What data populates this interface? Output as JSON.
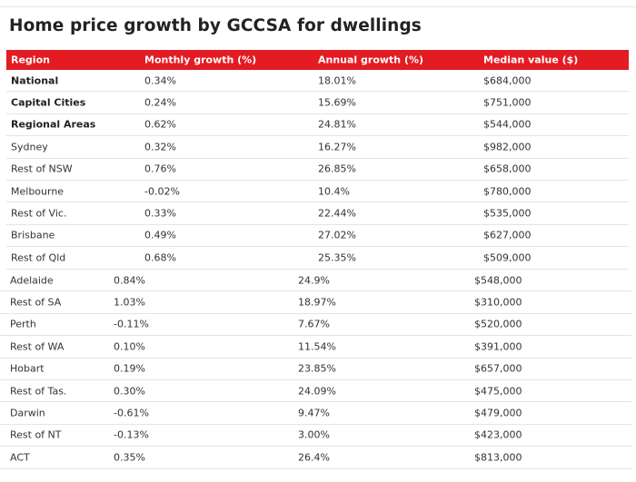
{
  "title": "Home price growth by GCCSA for dwellings",
  "header": [
    "Region",
    "Monthly growth (%)",
    "Annual growth (%)",
    "Median value ($)"
  ],
  "rows_top": [
    {
      "region": "National",
      "monthly": "0.34%",
      "annual": "18.01%",
      "median": "$684,000",
      "bold": true
    },
    {
      "region": "Capital Cities",
      "monthly": "0.24%",
      "annual": "15.69%",
      "median": "$751,000",
      "bold": true
    },
    {
      "region": "Regional Areas",
      "monthly": "0.62%",
      "annual": "24.81%",
      "median": "$544,000",
      "bold": true
    },
    {
      "region": "Sydney",
      "monthly": "0.32%",
      "annual": "16.27%",
      "median": "$982,000"
    },
    {
      "region": "Rest of NSW",
      "monthly": "0.76%",
      "annual": "26.85%",
      "median": "$658,000"
    },
    {
      "region": "Melbourne",
      "monthly": "-0.02%",
      "annual": "10.4%",
      "median": "$780,000"
    },
    {
      "region": "Rest of Vic.",
      "monthly": "0.33%",
      "annual": "22.44%",
      "median": "$535,000"
    },
    {
      "region": "Brisbane",
      "monthly": "0.49%",
      "annual": "27.02%",
      "median": "$627,000"
    },
    {
      "region": "Rest of Qld",
      "monthly": "0.68%",
      "annual": "25.35%",
      "median": "$509,000"
    }
  ],
  "rows_bottom": [
    {
      "region": "Adelaide",
      "monthly": "0.84%",
      "annual": "24.9%",
      "median": "$548,000"
    },
    {
      "region": "Rest of SA",
      "monthly": "1.03%",
      "annual": "18.97%",
      "median": "$310,000"
    },
    {
      "region": "Perth",
      "monthly": "-0.11%",
      "annual": "7.67%",
      "median": "$520,000"
    },
    {
      "region": "Rest of WA",
      "monthly": "0.10%",
      "annual": "11.54%",
      "median": "$391,000"
    },
    {
      "region": "Hobart",
      "monthly": "0.19%",
      "annual": "23.85%",
      "median": "$657,000"
    },
    {
      "region": "Rest of Tas.",
      "monthly": "0.30%",
      "annual": "24.09%",
      "median": "$475,000"
    },
    {
      "region": "Darwin",
      "monthly": "-0.61%",
      "annual": "9.47%",
      "median": "$479,000"
    },
    {
      "region": "Rest of NT",
      "monthly": "-0.13%",
      "annual": "3.00%",
      "median": "$423,000"
    },
    {
      "region": "ACT",
      "monthly": "0.35%",
      "annual": "26.4%",
      "median": "$813,000"
    }
  ]
}
